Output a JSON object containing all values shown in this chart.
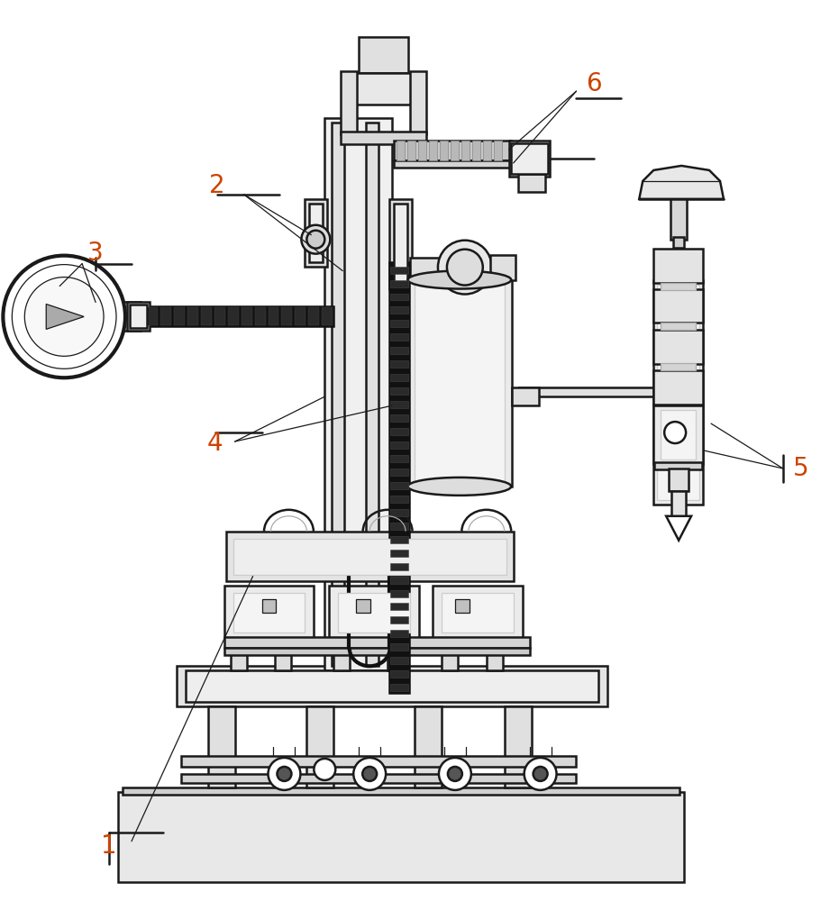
{
  "background_color": "#ffffff",
  "line_color": "#1a1a1a",
  "label_color": "#cc4400",
  "figsize": [
    9.31,
    10.0
  ],
  "dpi": 100,
  "lw_main": 1.8,
  "lw_thin": 0.9,
  "lw_thick": 3.0
}
